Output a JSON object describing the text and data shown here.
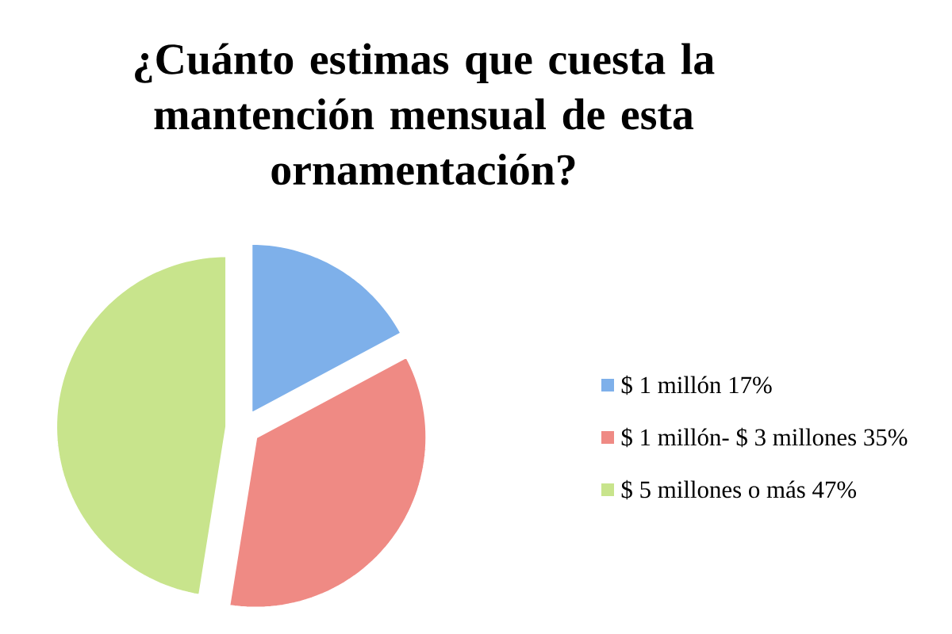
{
  "chart_data": {
    "type": "pie",
    "title": "¿Cuánto estimas que cuesta la mantención mensual de esta ornamentación?",
    "categories": [
      "$ 1 millón 17%",
      "$ 1 millón- $ 3 millones 35%",
      "$ 5 millones o más 47%"
    ],
    "values": [
      17,
      35,
      47
    ],
    "colors": [
      "#7eb0ea",
      "#ef8a84",
      "#c8e48c"
    ],
    "legend": "right"
  }
}
